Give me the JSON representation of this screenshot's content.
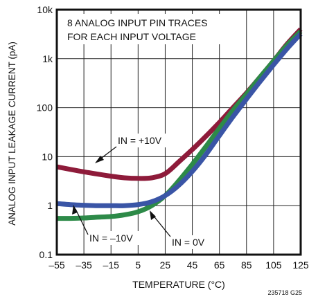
{
  "chart_data": {
    "type": "line",
    "title": "",
    "xlabel": "TEMPERATURE  (°C)",
    "ylabel": "ANALOG INPUT LEAKAGE CURRENT (pA)",
    "x_scale": "linear",
    "y_scale": "log",
    "xlim": [
      -55,
      125
    ],
    "ylim": [
      0.1,
      10000
    ],
    "x_ticks": [
      -55,
      -35,
      -15,
      5,
      25,
      45,
      65,
      85,
      105,
      125
    ],
    "x_tick_labels": [
      "–55",
      "–35",
      "–15",
      "5",
      "25",
      "45",
      "65",
      "85",
      "105",
      "125"
    ],
    "y_ticks": [
      0.1,
      1,
      10,
      100,
      1000,
      10000
    ],
    "y_tick_labels": [
      "0.1",
      "1",
      "10",
      "100",
      "1k",
      "10k"
    ],
    "grid": true,
    "legend": "none",
    "series": [
      {
        "name": "IN = +10V",
        "color": "#8e1b3a",
        "x": [
          -55,
          -45,
          -35,
          -25,
          -15,
          -5,
          5,
          15,
          25,
          35,
          45,
          55,
          65,
          75,
          85,
          95,
          105,
          115,
          125
        ],
        "y": [
          6.2,
          5.5,
          4.9,
          4.4,
          4.0,
          3.7,
          3.6,
          3.7,
          4.5,
          7.8,
          14,
          26,
          50,
          100,
          200,
          420,
          900,
          2000,
          4000
        ]
      },
      {
        "name": "IN = 0V",
        "color": "#2d8a48",
        "x": [
          -55,
          -45,
          -35,
          -25,
          -15,
          -5,
          5,
          15,
          25,
          35,
          45,
          55,
          65,
          75,
          85,
          95,
          105,
          115,
          125
        ],
        "y": [
          0.55,
          0.55,
          0.56,
          0.58,
          0.6,
          0.65,
          0.75,
          1.0,
          1.6,
          3.2,
          7.0,
          16,
          38,
          88,
          190,
          420,
          900,
          1900,
          3600
        ]
      },
      {
        "name": "IN = –10V",
        "color": "#3a55a6",
        "x": [
          -55,
          -45,
          -35,
          -25,
          -15,
          -5,
          5,
          15,
          25,
          35,
          45,
          55,
          65,
          75,
          85,
          95,
          105,
          115,
          125
        ],
        "y": [
          1.1,
          1.05,
          1.02,
          1.0,
          1.0,
          1.0,
          1.05,
          1.2,
          1.6,
          2.6,
          5.0,
          11,
          27,
          65,
          150,
          340,
          750,
          1600,
          3200
        ]
      }
    ],
    "annotations": {
      "header_line1": "8 ANALOG INPUT PIN TRACES",
      "header_line2": "FOR EACH INPUT VOLTAGE",
      "label_pos": "IN = +10V",
      "label_neg": "IN = –10V",
      "label_zero": "IN = 0V",
      "figure_code": "235718 G25"
    }
  }
}
